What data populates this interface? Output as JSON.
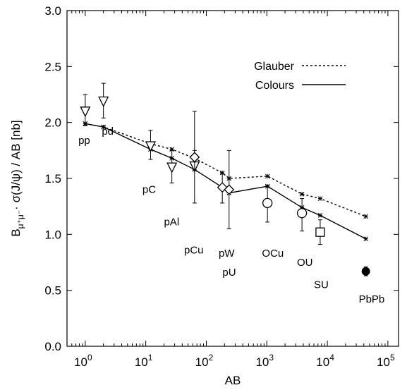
{
  "chart_data": {
    "type": "scatter",
    "xlabel": "AB",
    "ylabel": "Bμ⁺μ⁻· σ(J/ψ) / AB [nb]",
    "ylabel_parts": {
      "b": "B",
      "sub": "μ⁺μ⁻",
      "rest": "· σ(J/ψ) / AB [nb]"
    },
    "xscale": "log",
    "xlim": [
      0.5,
      150000
    ],
    "ylim": [
      0,
      3
    ],
    "x_ticks": [
      {
        "value": 1,
        "base": "10",
        "exp": "0"
      },
      {
        "value": 10,
        "base": "10",
        "exp": "1"
      },
      {
        "value": 100,
        "base": "10",
        "exp": "2"
      },
      {
        "value": 1000,
        "base": "10",
        "exp": "3"
      },
      {
        "value": 10000,
        "base": "10",
        "exp": "4"
      },
      {
        "value": 100000,
        "base": "10",
        "exp": "5"
      }
    ],
    "y_ticks": [
      {
        "value": 0,
        "label": "0.0"
      },
      {
        "value": 0.5,
        "label": "0.5"
      },
      {
        "value": 1,
        "label": "1.0"
      },
      {
        "value": 1.5,
        "label": "1.5"
      },
      {
        "value": 2,
        "label": "2.0"
      },
      {
        "value": 2.5,
        "label": "2.5"
      },
      {
        "value": 3,
        "label": "3.0"
      }
    ],
    "grid": false,
    "legend_position": "top-right",
    "series": [
      {
        "name": "Glauber",
        "style": "dashed",
        "marker": "asterisk",
        "x": [
          1,
          2,
          12,
          27,
          64,
          184,
          238,
          1024,
          3808,
          7616,
          43264
        ],
        "y": [
          1.99,
          1.96,
          1.81,
          1.76,
          1.68,
          1.55,
          1.5,
          1.52,
          1.36,
          1.32,
          1.16
        ]
      },
      {
        "name": "Colours",
        "style": "solid",
        "marker": "asterisk",
        "x": [
          1,
          2,
          12,
          27,
          64,
          184,
          238,
          1024,
          3808,
          7616,
          43264
        ],
        "y": [
          1.99,
          1.96,
          1.76,
          1.68,
          1.58,
          1.42,
          1.37,
          1.43,
          1.24,
          1.17,
          0.96
        ]
      }
    ],
    "measurements": [
      {
        "system": "pp",
        "x": 1,
        "y": 2.1,
        "err_lo": 0.13,
        "err_hi": 0.15,
        "marker": "triangle-down-open"
      },
      {
        "system": "pd",
        "x": 2,
        "y": 2.19,
        "err_lo": 0.15,
        "err_hi": 0.16,
        "marker": "triangle-down-open"
      },
      {
        "system": "pC",
        "x": 12,
        "y": 1.79,
        "err_lo": 0.12,
        "err_hi": 0.14,
        "marker": "triangle-down-open"
      },
      {
        "system": "pAl",
        "x": 27,
        "y": 1.6,
        "err_lo": 0.14,
        "err_hi": 0.15,
        "marker": "triangle-down-open"
      },
      {
        "system": "pCu",
        "x": 64,
        "y": 1.61,
        "err_lo": 0.33,
        "err_hi": 0.49,
        "marker": "triangle-down-open"
      },
      {
        "system": "pCu",
        "x": 64,
        "y": 1.69,
        "err_lo": 0.12,
        "err_hi": 0.06,
        "marker": "diamond-open"
      },
      {
        "system": "pW",
        "x": 184,
        "y": 1.42,
        "err_lo": 0.14,
        "err_hi": 0.12,
        "marker": "diamond-open"
      },
      {
        "system": "pU",
        "x": 238,
        "y": 1.4,
        "err_lo": 0.35,
        "err_hi": 0.35,
        "marker": "diamond-open"
      },
      {
        "system": "OCu",
        "x": 1024,
        "y": 1.28,
        "err_lo": 0.17,
        "err_hi": 0.16,
        "marker": "circle-open"
      },
      {
        "system": "OU",
        "x": 3808,
        "y": 1.19,
        "err_lo": 0.16,
        "err_hi": 0.13,
        "marker": "circle-open"
      },
      {
        "system": "SU",
        "x": 7616,
        "y": 1.02,
        "err_lo": 0.11,
        "err_hi": 0.11,
        "marker": "square-open"
      },
      {
        "system": "PbPb",
        "x": 43264,
        "y": 0.67,
        "err_lo": 0.04,
        "err_hi": 0.04,
        "marker": "circle-filled"
      }
    ],
    "annotations": [
      {
        "text": "pp",
        "x": 0.77,
        "y": 1.81
      },
      {
        "text": "pd",
        "x": 1.88,
        "y": 1.89
      },
      {
        "text": "pC",
        "x": 8.8,
        "y": 1.37
      },
      {
        "text": "pAl",
        "x": 20,
        "y": 1.08
      },
      {
        "text": "pCu",
        "x": 43,
        "y": 0.83
      },
      {
        "text": "pW",
        "x": 160,
        "y": 0.8
      },
      {
        "text": "pU",
        "x": 185,
        "y": 0.63
      },
      {
        "text": "OCu",
        "x": 830,
        "y": 0.8
      },
      {
        "text": "OU",
        "x": 3150,
        "y": 0.72
      },
      {
        "text": "SU",
        "x": 6000,
        "y": 0.52
      },
      {
        "text": "PbPb",
        "x": 33000,
        "y": 0.39
      }
    ]
  }
}
